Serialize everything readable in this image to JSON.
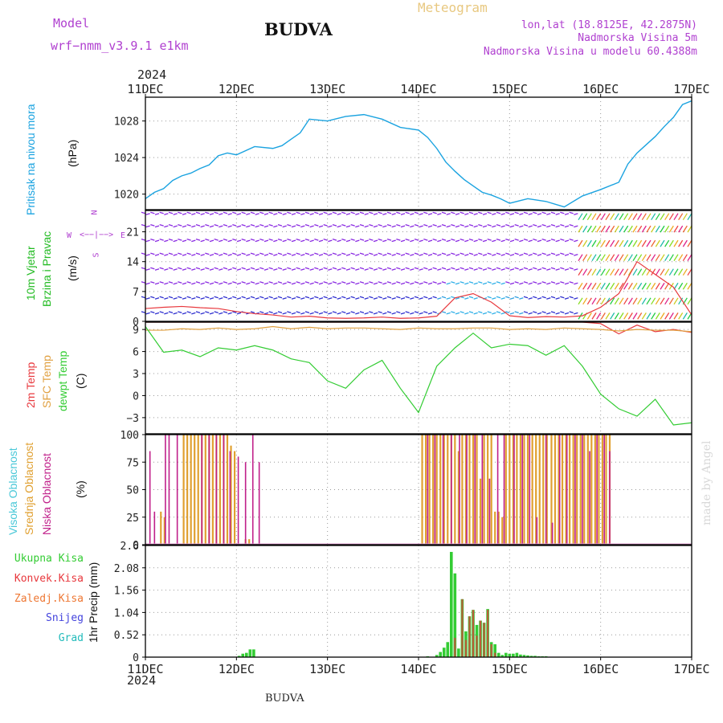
{
  "header": {
    "title": "BUDVA",
    "model_label": "Model",
    "model_name": "wrf−nmm_v3.9.1 e1km",
    "meteogram_label": "Meteogram",
    "coords": "lon,lat (18.8125E, 42.2875N)",
    "elevation": "Nadmorska Visina 5m",
    "model_elevation": "Nadmorska Visina u modelu 60.4388m",
    "credit": "made by Angel",
    "footer_title": "BUDVA"
  },
  "colors": {
    "pressure": "#1ba3e0",
    "temp2m": "#e8383d",
    "sfc_temp": "#e0a040",
    "dewpoint": "#33cc33",
    "wind_label": "#22bb22",
    "high_cloud": "#4ac8d8",
    "mid_cloud": "#e0a030",
    "low_cloud": "#c0208a",
    "total_precip": "#33cc33",
    "conv_precip": "#e8383d",
    "frozen_precip": "#ee7733",
    "snow": "#4444dd",
    "hail": "#22bbbb",
    "purple": "#b040d0",
    "gray": "#888888",
    "gold": "#e8c880"
  },
  "time_axis": {
    "year": "2024",
    "ticks": [
      "11DEC",
      "12DEC",
      "13DEC",
      "14DEC",
      "15DEC",
      "16DEC",
      "17DEC"
    ]
  },
  "compass": {
    "n": "N",
    "w": "W",
    "e": "E",
    "s": "S",
    "arrow": "<−−|−−>"
  },
  "chart_data": [
    {
      "type": "line",
      "id": "pressure",
      "ylabel_title": "Pritisak na nivou mora",
      "ylabel_unit": "(hPa)",
      "ylim": [
        1018.3,
        1030.6
      ],
      "yticks": [
        "1020",
        "1024",
        "1028"
      ],
      "yticks_values": [
        1020,
        1024,
        1028
      ],
      "x_days": [
        0,
        0.1,
        0.2,
        0.3,
        0.4,
        0.5,
        0.6,
        0.7,
        0.8,
        0.9,
        1.0,
        1.2,
        1.4,
        1.5,
        1.6,
        1.7,
        1.8,
        2.0,
        2.2,
        2.4,
        2.6,
        2.8,
        3.0,
        3.1,
        3.2,
        3.3,
        3.4,
        3.5,
        3.6,
        3.7,
        3.8,
        3.9,
        4.0,
        4.2,
        4.4,
        4.6,
        4.8,
        5.0,
        5.2,
        5.3,
        5.4,
        5.5,
        5.6,
        5.7,
        5.8,
        5.9,
        6.0
      ],
      "series": [
        {
          "name": "Pritisak na nivou mora",
          "values": [
            1019.5,
            1020.2,
            1020.6,
            1021.5,
            1022.0,
            1022.3,
            1022.8,
            1023.2,
            1024.2,
            1024.5,
            1024.3,
            1025.2,
            1025.0,
            1025.3,
            1026.0,
            1026.7,
            1028.2,
            1028.0,
            1028.5,
            1028.7,
            1028.2,
            1027.3,
            1027.0,
            1026.2,
            1025.0,
            1023.5,
            1022.5,
            1021.6,
            1020.9,
            1020.2,
            1019.9,
            1019.5,
            1019.0,
            1019.5,
            1019.2,
            1018.6,
            1019.8,
            1020.5,
            1021.3,
            1023.3,
            1024.5,
            1025.4,
            1026.3,
            1027.4,
            1028.4,
            1029.8,
            1030.2
          ]
        }
      ]
    },
    {
      "type": "scatter",
      "id": "wind",
      "ylabel_title": "10m Vjetar",
      "ylabel_subtitle": "Brzina i Pravac",
      "ylabel_unit": "(m/s)",
      "ylim": [
        0,
        26
      ],
      "yticks": [
        "0",
        "7",
        "14",
        "21"
      ],
      "yticks_values": [
        0,
        7,
        14,
        21
      ],
      "speed_x": [
        0,
        0.2,
        0.4,
        0.6,
        0.8,
        1.0,
        1.2,
        1.4,
        1.6,
        1.8,
        2.0,
        2.2,
        2.4,
        2.6,
        2.8,
        3.0,
        3.2,
        3.4,
        3.6,
        3.8,
        4.0,
        4.2,
        4.4,
        4.6,
        4.8,
        5.0,
        5.2,
        5.4,
        5.6,
        5.8,
        6.0
      ],
      "speed_values": [
        3.0,
        3.3,
        3.5,
        3.2,
        3.0,
        2.3,
        1.8,
        1.5,
        1.0,
        1.2,
        0.8,
        0.7,
        0.8,
        1.0,
        0.7,
        0.8,
        1.2,
        5.5,
        6.5,
        4.5,
        1.3,
        0.9,
        1.1,
        1.0,
        1.3,
        3.3,
        6.5,
        14.0,
        11.0,
        8.0,
        1.5
      ]
    },
    {
      "type": "line",
      "id": "temperature",
      "ylabel_title": "2m Temp",
      "ylabel_title2": "SFC Temp",
      "ylabel_title3": "dewpt Temp",
      "ylabel_unit": "(C)",
      "ylim": [
        -5.2,
        10.0
      ],
      "yticks": [
        "−3",
        "0",
        "3",
        "6",
        "9"
      ],
      "yticks_values": [
        -3,
        0,
        3,
        6,
        9
      ],
      "x_days": [
        0,
        0.2,
        0.4,
        0.6,
        0.8,
        1.0,
        1.2,
        1.4,
        1.6,
        1.8,
        2.0,
        2.2,
        2.4,
        2.6,
        2.8,
        3.0,
        3.2,
        3.4,
        3.6,
        3.8,
        4.0,
        4.2,
        4.4,
        4.6,
        4.8,
        5.0,
        5.2,
        5.4,
        5.6,
        5.8,
        6.0
      ],
      "series": [
        {
          "name": "2m Temp",
          "values": [
            10.5,
            10.3,
            10.4,
            10.2,
            10.1,
            10.1,
            10.2,
            10.6,
            10.3,
            10.5,
            10.3,
            10.5,
            10.6,
            10.5,
            10.2,
            10.3,
            10.4,
            10.2,
            10.4,
            10.6,
            10.1,
            10.3,
            10.1,
            10.5,
            10.4,
            9.8,
            8.4,
            9.6,
            8.7,
            9.0,
            8.6
          ]
        },
        {
          "name": "SFC Temp",
          "values": [
            8.9,
            8.9,
            9.1,
            9.0,
            9.2,
            9.0,
            9.1,
            9.4,
            9.1,
            9.3,
            9.1,
            9.2,
            9.2,
            9.1,
            9.0,
            9.2,
            9.1,
            9.1,
            9.2,
            9.2,
            9.0,
            9.1,
            9.0,
            9.2,
            9.1,
            9.0,
            8.8,
            9.0,
            8.9,
            8.9,
            8.7
          ]
        },
        {
          "name": "dewpt Temp",
          "values": [
            9.4,
            5.9,
            6.2,
            5.3,
            6.5,
            6.2,
            6.8,
            6.2,
            5.0,
            4.5,
            2.0,
            1.0,
            3.5,
            4.8,
            1.0,
            -2.3,
            4.0,
            6.5,
            8.5,
            6.5,
            7.0,
            6.8,
            5.5,
            6.8,
            4.0,
            0.2,
            -1.8,
            -2.8,
            -0.5,
            -4.0,
            -3.7
          ]
        }
      ]
    },
    {
      "type": "bar",
      "id": "clouds",
      "ylabel_title": "Visoka Oblacnost",
      "ylabel_title2": "Srednja Oblacnost",
      "ylabel_title3": "Niska Oblacnost",
      "ylabel_unit": "(%)",
      "ylim": [
        0,
        100
      ],
      "yticks": [
        "0",
        "25",
        "50",
        "75",
        "100"
      ],
      "yticks_values": [
        0,
        25,
        50,
        75,
        100
      ],
      "series": [
        {
          "name": "Visoka Oblacnost",
          "x": [],
          "values": []
        },
        {
          "name": "Srednja Oblacnost",
          "x": [
            0.17,
            0.21,
            0.42,
            0.46,
            0.5,
            0.54,
            0.58,
            0.62,
            0.66,
            0.7,
            0.74,
            0.78,
            0.82,
            0.86,
            0.9,
            0.94,
            0.98,
            1.1,
            1.14,
            3.04,
            3.08,
            3.12,
            3.16,
            3.2,
            3.24,
            3.28,
            3.32,
            3.36,
            3.4,
            3.44,
            3.48,
            3.52,
            3.56,
            3.6,
            3.64,
            3.68,
            3.72,
            3.76,
            3.8,
            3.84,
            3.88,
            3.92,
            3.96,
            4.0,
            4.04,
            4.08,
            4.12,
            4.16,
            4.2,
            4.25,
            4.29,
            4.33,
            4.37,
            4.41,
            4.46,
            4.5,
            4.54,
            4.58,
            4.62,
            4.66,
            4.7,
            4.74,
            4.78,
            4.82,
            4.86,
            4.9,
            4.94,
            4.98,
            5.02,
            5.06,
            5.1
          ],
          "values": [
            30,
            25,
            100,
            100,
            100,
            100,
            100,
            100,
            100,
            100,
            100,
            100,
            100,
            100,
            100,
            90,
            85,
            5,
            5,
            100,
            100,
            100,
            100,
            100,
            100,
            100,
            100,
            100,
            100,
            85,
            100,
            100,
            100,
            100,
            100,
            60,
            100,
            100,
            100,
            30,
            30,
            25,
            100,
            100,
            100,
            100,
            100,
            100,
            100,
            100,
            100,
            100,
            100,
            100,
            100,
            100,
            100,
            100,
            100,
            100,
            100,
            100,
            100,
            100,
            100,
            100,
            100,
            100,
            100,
            100,
            100
          ]
        },
        {
          "name": "Niska Oblacnost",
          "x": [
            0.05,
            0.1,
            0.22,
            0.26,
            0.35,
            0.62,
            0.7,
            0.78,
            0.86,
            0.93,
            1.02,
            1.1,
            1.18,
            1.25,
            3.1,
            3.18,
            3.27,
            3.36,
            3.45,
            3.53,
            3.62,
            3.7,
            3.78,
            3.87,
            3.94,
            4.05,
            4.14,
            4.22,
            4.3,
            4.4,
            4.47,
            4.55,
            4.63,
            4.72,
            4.8,
            4.88,
            4.96,
            5.04,
            5.1
          ],
          "values": [
            85,
            30,
            100,
            100,
            100,
            100,
            100,
            100,
            100,
            85,
            80,
            75,
            100,
            75,
            100,
            100,
            100,
            100,
            100,
            100,
            100,
            100,
            60,
            100,
            100,
            100,
            100,
            100,
            25,
            100,
            20,
            100,
            100,
            100,
            100,
            85,
            100,
            100,
            85
          ]
        }
      ]
    },
    {
      "type": "bar",
      "id": "precip",
      "ylabel_unit": "1hr Precip (mm)",
      "legend": [
        "Ukupna Kisa",
        "Konvek.Kisa",
        "Zaledj.Kisa",
        "Snijeg",
        "Grad"
      ],
      "ylim": [
        0,
        2.6
      ],
      "yticks": [
        "0",
        "0.52",
        "1.04",
        "1.56",
        "2.08",
        "2.6"
      ],
      "yticks_values": [
        0,
        0.52,
        1.04,
        1.56,
        2.08,
        2.6
      ],
      "series": [
        {
          "name": "Ukupna Kisa",
          "x": [
            1.03,
            1.07,
            1.11,
            1.15,
            1.19,
            3.1,
            3.2,
            3.24,
            3.28,
            3.32,
            3.36,
            3.4,
            3.44,
            3.48,
            3.52,
            3.56,
            3.6,
            3.64,
            3.68,
            3.72,
            3.76,
            3.8,
            3.84,
            3.88,
            3.92,
            3.96,
            4.0,
            4.04,
            4.08,
            4.12,
            4.16,
            4.2,
            4.24,
            4.28,
            4.32,
            4.36,
            4.4
          ],
          "values": [
            0.03,
            0.08,
            0.1,
            0.18,
            0.18,
            0.02,
            0.05,
            0.12,
            0.22,
            0.35,
            2.45,
            1.95,
            0.2,
            1.35,
            0.6,
            0.95,
            1.1,
            0.75,
            0.85,
            0.8,
            1.12,
            0.35,
            0.3,
            0.1,
            0.05,
            0.1,
            0.08,
            0.08,
            0.1,
            0.06,
            0.05,
            0.04,
            0.03,
            0.03,
            0.02,
            0.02,
            0.02
          ]
        },
        {
          "name": "Konvek.Kisa",
          "x": [
            3.4,
            3.48,
            3.52,
            3.56,
            3.6,
            3.64,
            3.68,
            3.72,
            3.76,
            3.8,
            3.84
          ],
          "values": [
            0.45,
            1.35,
            0.4,
            0.95,
            1.1,
            0.5,
            0.85,
            0.8,
            1.1,
            0.3,
            0.1
          ]
        }
      ]
    }
  ]
}
